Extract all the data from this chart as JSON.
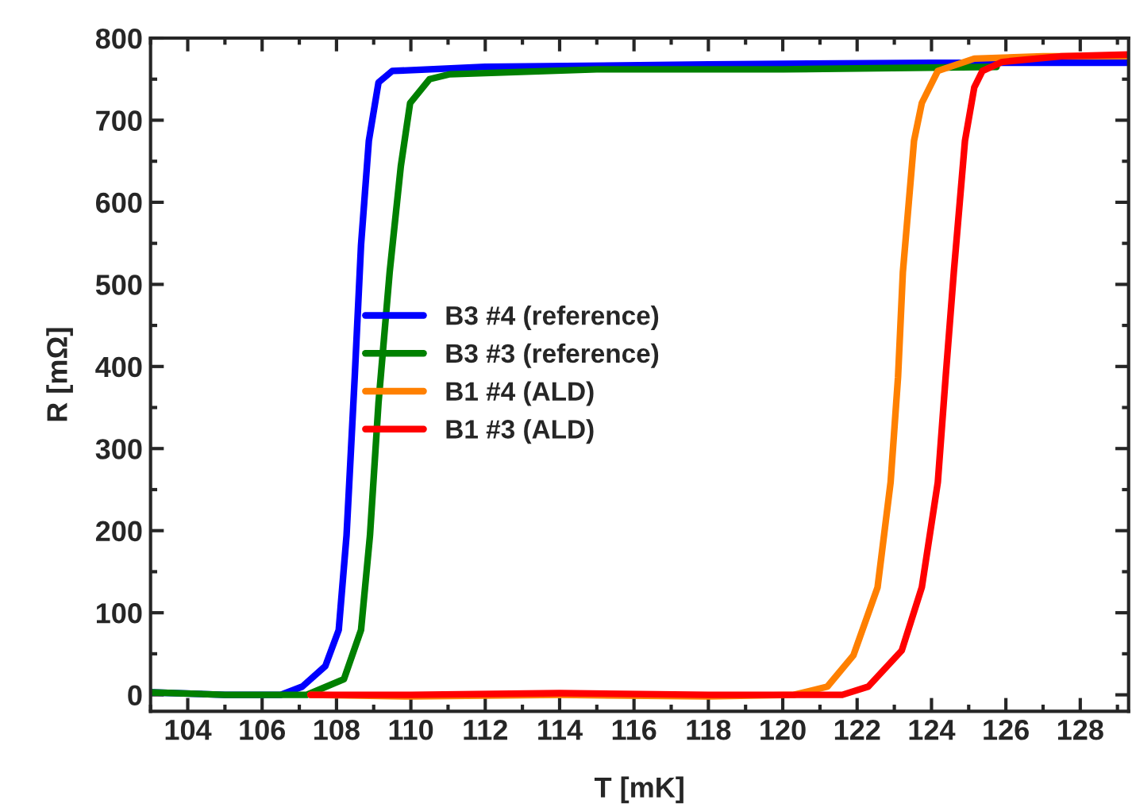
{
  "chart_data": {
    "type": "line",
    "xlabel": "T [mK]",
    "ylabel": "R [mΩ]",
    "xlim": [
      103,
      129.3
    ],
    "ylim": [
      -20,
      800
    ],
    "xticks": [
      104,
      106,
      108,
      110,
      112,
      114,
      116,
      118,
      120,
      122,
      124,
      126,
      128
    ],
    "yticks": [
      0,
      100,
      200,
      300,
      400,
      500,
      600,
      700,
      800
    ],
    "grid": false,
    "legend": "center",
    "marker": "none",
    "line_style": "solid",
    "series": [
      {
        "name": "B3 #4 (reference)",
        "color": "#0000ff",
        "x": [
          103,
          105,
          106.5,
          107.08,
          107.7,
          108.06,
          108.27,
          108.49,
          108.66,
          108.87,
          109.13,
          109.5,
          112,
          118,
          124,
          129.3
        ],
        "values": [
          3,
          0,
          0,
          10,
          35,
          79,
          194,
          387,
          548,
          675,
          746,
          760,
          765,
          768,
          770,
          770
        ]
      },
      {
        "name": "B3 #3 (reference)",
        "color": "#008000",
        "x": [
          103,
          105,
          107.2,
          108.2,
          108.66,
          108.9,
          109.13,
          109.43,
          109.73,
          109.98,
          110.5,
          111.05,
          115,
          120,
          125.75
        ],
        "values": [
          3,
          0,
          0,
          19,
          79,
          194,
          356,
          515,
          644,
          721,
          750,
          756,
          762,
          762,
          765
        ]
      },
      {
        "name": "B1 #4 (ALD)",
        "color": "#ff8000",
        "x": [
          107.3,
          110,
          114,
          118,
          120.3,
          121.2,
          121.9,
          122.55,
          122.9,
          123.1,
          123.23,
          123.53,
          123.74,
          124.17,
          125.15,
          127,
          129.3
        ],
        "values": [
          0,
          -2,
          0,
          -2,
          0,
          10,
          48,
          131,
          259,
          387,
          515,
          675,
          721,
          760,
          775,
          778,
          778
        ]
      },
      {
        "name": "B1 #3 (ALD)",
        "color": "#ff0000",
        "x": [
          107.3,
          110,
          114,
          118,
          121.6,
          122.3,
          123.2,
          123.74,
          124.17,
          124.38,
          124.6,
          124.9,
          125.15,
          125.37,
          125.9,
          127.5,
          129.3
        ],
        "values": [
          0,
          0,
          2,
          0,
          0,
          10,
          54,
          131,
          259,
          387,
          515,
          675,
          740,
          760,
          771,
          778,
          780
        ]
      }
    ]
  }
}
